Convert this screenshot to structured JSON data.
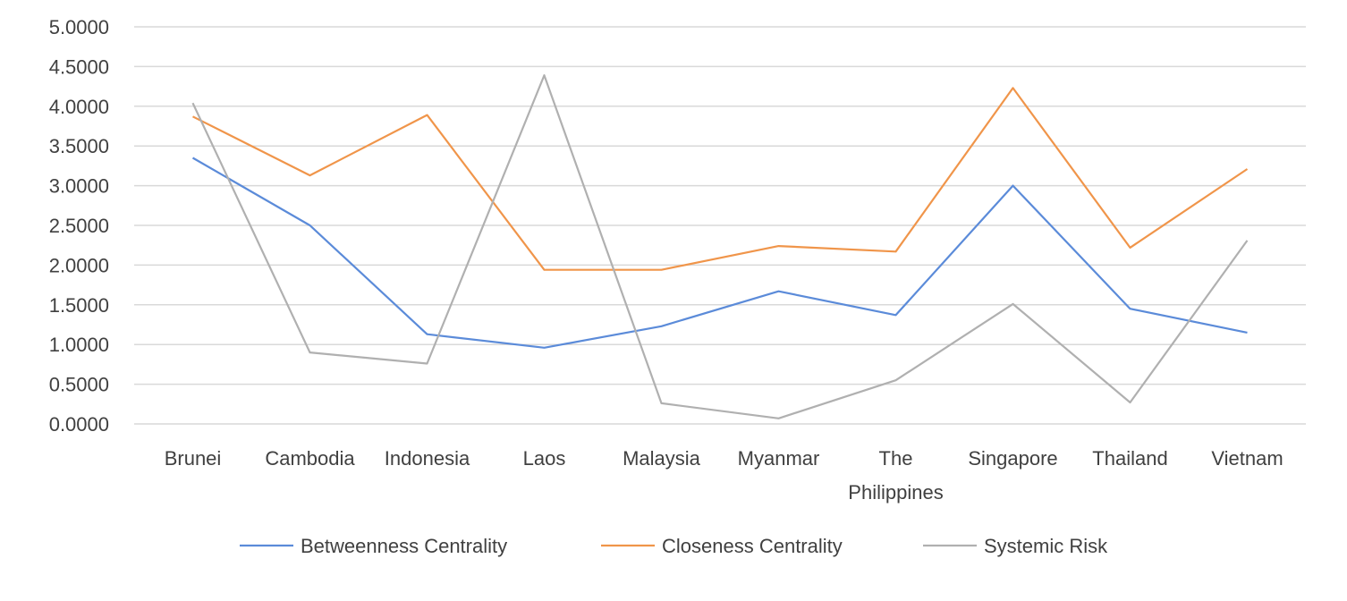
{
  "chart_data": {
    "type": "line",
    "categories": [
      "Brunei",
      "Cambodia",
      "Indonesia",
      "Laos",
      "Malaysia",
      "Myanmar",
      "The Philippines",
      "Singapore",
      "Thailand",
      "Vietnam"
    ],
    "series": [
      {
        "name": "Betweenness Centrality",
        "color": "#5B8BD9",
        "values": [
          3.35,
          2.5,
          1.13,
          0.96,
          1.23,
          1.67,
          1.37,
          3.0,
          1.45,
          1.15
        ]
      },
      {
        "name": "Closeness Centrality",
        "color": "#F0954A",
        "values": [
          3.87,
          3.13,
          3.89,
          1.94,
          1.94,
          2.24,
          2.17,
          4.23,
          2.22,
          3.21
        ]
      },
      {
        "name": "Systemic Risk",
        "color": "#B0B0B0",
        "values": [
          4.04,
          0.9,
          0.76,
          4.39,
          0.26,
          0.07,
          0.55,
          1.51,
          0.27,
          2.31
        ]
      }
    ],
    "y_ticks": [
      "0.0000",
      "0.5000",
      "1.0000",
      "1.5000",
      "2.0000",
      "2.5000",
      "3.0000",
      "3.5000",
      "4.0000",
      "4.5000",
      "5.0000"
    ],
    "ylim": [
      0,
      5
    ],
    "grid": true,
    "legend_position": "bottom"
  }
}
